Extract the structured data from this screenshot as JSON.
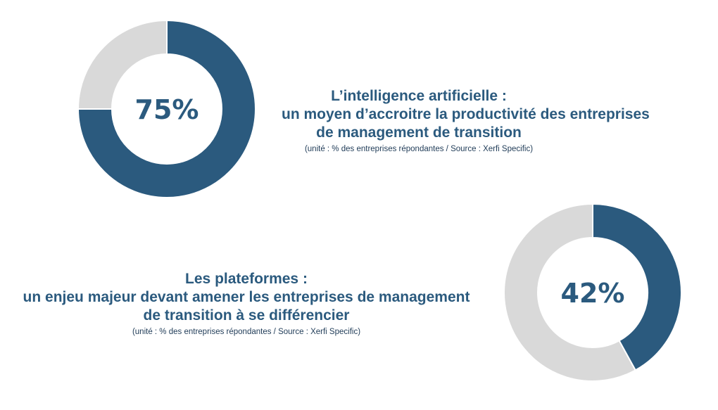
{
  "colors": {
    "primary": "#2b5a7e",
    "remainder": "#d9d9d9",
    "text": "#2b5a7e",
    "source_text": "#1f3b57"
  },
  "chart_data": [
    {
      "type": "pie",
      "variant": "donut",
      "values": [
        75,
        25
      ],
      "center_label": "75%",
      "title_lines": [
        "L’intelligence artificielle :",
        "un moyen d’accroitre la productivité des entreprises",
        "de management de transition"
      ],
      "source": "(unité : % des entreprises répondantes / Source : Xerfi Specific)"
    },
    {
      "type": "pie",
      "variant": "donut",
      "values": [
        42,
        58
      ],
      "center_label": "42%",
      "title_lines": [
        "Les plateformes :",
        "un enjeu majeur devant amener les entreprises de management",
        "de transition à se différencier"
      ],
      "source": "(unité : % des entreprises répondantes / Source : Xerfi Specific)"
    }
  ]
}
